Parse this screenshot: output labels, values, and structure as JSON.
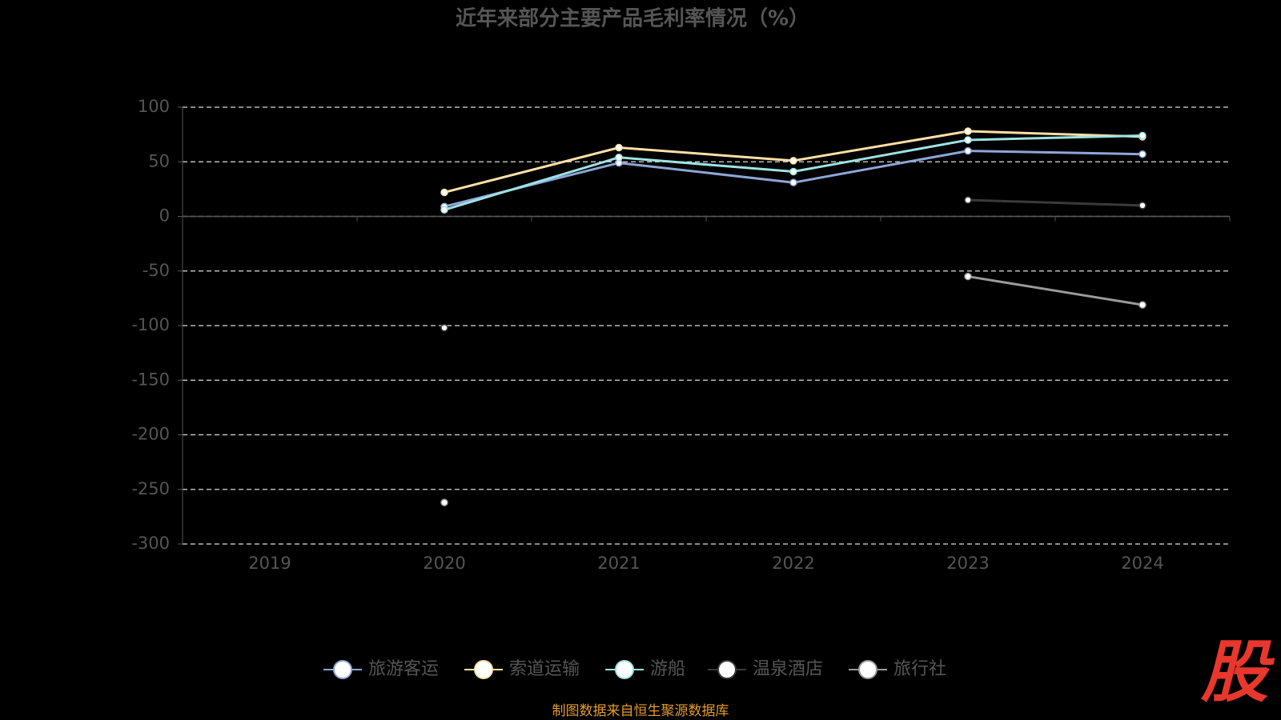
{
  "chart_data": {
    "type": "line",
    "title": "近年来部分主要产品毛利率情况（%）",
    "categories": [
      "2019",
      "2020",
      "2021",
      "2022",
      "2023",
      "2024"
    ],
    "series": [
      {
        "name": "旅游客运",
        "color": "#8ea6d6",
        "values": [
          null,
          9,
          49,
          31,
          60,
          57
        ]
      },
      {
        "name": "索道运输",
        "color": "#ffe0a6",
        "values": [
          null,
          22,
          63,
          51,
          78,
          73
        ]
      },
      {
        "name": "游船",
        "color": "#9de3e3",
        "values": [
          null,
          6,
          54,
          41,
          70,
          74
        ]
      },
      {
        "name": "温泉酒店",
        "color": "#3a3a3a",
        "values": [
          null,
          -102,
          null,
          null,
          15,
          10
        ]
      },
      {
        "name": "旅行社",
        "color": "#9a9a9a",
        "values": [
          null,
          -262,
          null,
          null,
          -55,
          -81
        ]
      }
    ],
    "ylim": [
      -300,
      100
    ],
    "yticks": [
      -300,
      -250,
      -200,
      -150,
      -100,
      -50,
      0,
      50,
      100
    ],
    "grid": true,
    "legend": "bottom",
    "source": "制图数据来自恒生聚源数据库",
    "logo": "股"
  }
}
